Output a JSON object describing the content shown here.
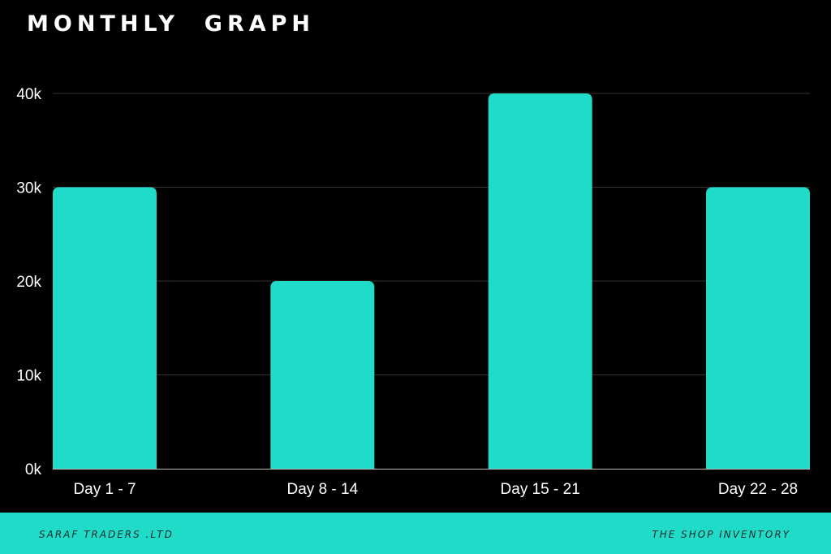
{
  "title": "MONTHLY  GRAPH",
  "footer": {
    "left": "SARAF TRADERS .LTD",
    "right": "THE SHOP INVENTORY"
  },
  "colors": {
    "background": "#000000",
    "bar": "#20dbc8",
    "grid": "#333333",
    "text": "#ffffff",
    "footer_bg": "#20dbc8",
    "footer_text": "#0a2b29"
  },
  "chart_data": {
    "type": "bar",
    "title": "MONTHLY  GRAPH",
    "categories": [
      "Day 1 - 7",
      "Day 8 - 14",
      "Day 15 - 21",
      "Day 22 - 28"
    ],
    "values": [
      30000,
      20000,
      40000,
      30000
    ],
    "yticks": [
      0,
      10000,
      20000,
      30000,
      40000
    ],
    "ytick_labels": [
      "0k",
      "10k",
      "20k",
      "30k",
      "40k"
    ],
    "ylim": [
      0,
      40000
    ],
    "xlabel": "",
    "ylabel": "",
    "grid": true,
    "legend": "none"
  }
}
